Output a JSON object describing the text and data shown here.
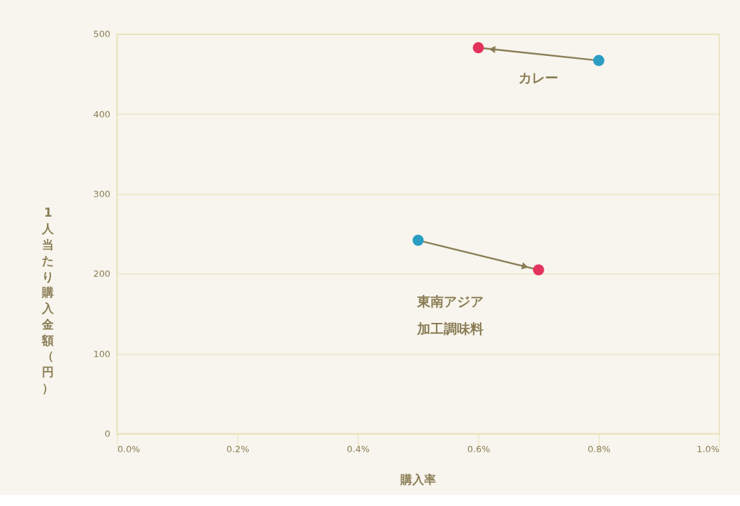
{
  "chart_data": {
    "type": "scatter",
    "xlabel": "購入率",
    "ylabel": "1人当たり購入金額（円）",
    "series": [
      {
        "color": "#2a9dc2",
        "x": [
          0.8,
          0.5
        ],
        "values": [
          467,
          242
        ]
      },
      {
        "color": "#e3325c",
        "x": [
          0.6,
          0.7
        ],
        "values": [
          483,
          205
        ]
      }
    ],
    "xlim": [
      0,
      1.0
    ],
    "ylim": [
      0,
      500
    ],
    "xticks": [
      {
        "value": 0,
        "label": "0.0%"
      },
      {
        "value": 0.2,
        "label": "0.2%"
      },
      {
        "value": 0.4,
        "label": "0.4%"
      },
      {
        "value": 0.6,
        "label": "0.6%"
      },
      {
        "value": 0.8,
        "label": "0.8%"
      },
      {
        "value": 1.0,
        "label": "1.0%"
      }
    ],
    "yticks": [
      0,
      100,
      200,
      300,
      400,
      500
    ],
    "grid": "y",
    "marker": "circle",
    "annotations": [
      "カレー",
      "東南アジア加工調味料"
    ]
  }
}
